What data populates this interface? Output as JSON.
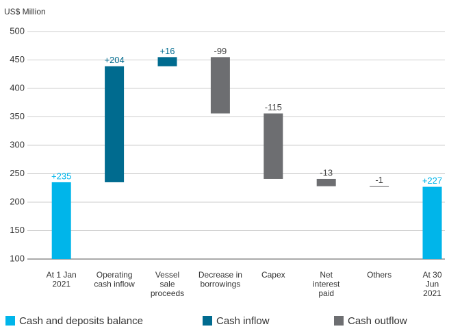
{
  "chart_data": {
    "type": "waterfall",
    "y_axis_label": "US$ Million",
    "categories": [
      [
        "At 1 Jan",
        "2021"
      ],
      [
        "Operating",
        "cash inflow"
      ],
      [
        "Vessel",
        "sale",
        "proceeds"
      ],
      [
        "Decrease in",
        "borrowings"
      ],
      [
        "Capex"
      ],
      [
        "Net",
        "interest",
        "paid"
      ],
      [
        "Others"
      ],
      [
        "At 30",
        "Jun",
        "2021"
      ]
    ],
    "measures": [
      "absolute",
      "relative",
      "relative",
      "relative",
      "relative",
      "relative",
      "relative",
      "total"
    ],
    "values": [
      235,
      204,
      16,
      -99,
      -115,
      -13,
      -1,
      227
    ],
    "value_labels": [
      "+235",
      "+204",
      "+16",
      "-99",
      "-115",
      "-13",
      "-1",
      "+227"
    ],
    "series": [
      {
        "name": "Cash and deposits balance",
        "color": "#00b5ea"
      },
      {
        "name": "Cash inflow",
        "color": "#006b8f"
      },
      {
        "name": "Cash outflow",
        "color": "#6d6e71"
      }
    ],
    "ylim": [
      100,
      500
    ],
    "yticks": [
      100,
      150,
      200,
      250,
      300,
      350,
      400,
      450,
      500
    ],
    "grid": true
  }
}
